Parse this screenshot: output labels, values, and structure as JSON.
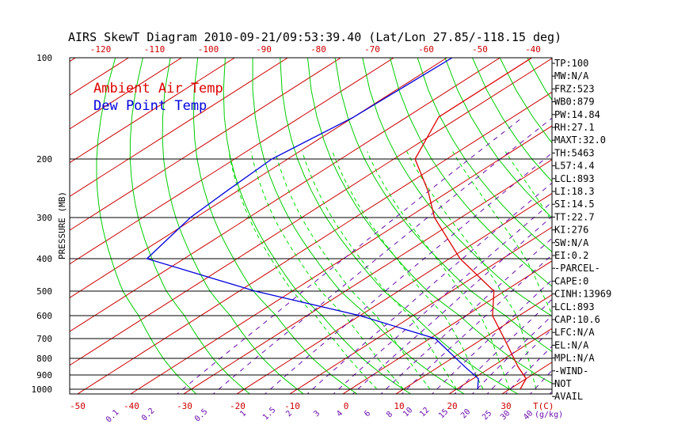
{
  "chart_data": {
    "type": "line",
    "title": "AIRS SkewT Diagram 2010-09-21/09:53:39.40 (Lat/Lon 27.85/-118.15 deg)",
    "ylabel": "PRESSURE (MB)",
    "xlabel_right": "T(C)",
    "mixing_unit": "(g/kg)",
    "top_ticks": [
      "-120",
      "-110",
      "-100",
      "-90",
      "-80",
      "-70",
      "-60",
      "-50",
      "-40"
    ],
    "bottom_ticks": [
      "-50",
      "-40",
      "-30",
      "-20",
      "-10",
      "0",
      "10",
      "20",
      "30"
    ],
    "pressure_ticks": [
      "100",
      "200",
      "300",
      "400",
      "500",
      "600",
      "700",
      "800",
      "900",
      "1000"
    ],
    "pressure_levels": [
      100,
      200,
      300,
      400,
      500,
      600,
      700,
      800,
      900,
      1000
    ],
    "mixing_ratio_labels": [
      "0.1",
      "0.2",
      "0.5",
      "1",
      "1.5",
      "2",
      "3",
      "4",
      "6",
      "8",
      "10",
      "12",
      "15",
      "20",
      "25",
      "30",
      "40"
    ],
    "series": [
      {
        "name": "Ambient Air Temp",
        "color": "#dd0000",
        "points": [
          [
            100,
            -74
          ],
          [
            150,
            -74
          ],
          [
            200,
            -66
          ],
          [
            250,
            -54
          ],
          [
            300,
            -45
          ],
          [
            400,
            -28
          ],
          [
            500,
            -12
          ],
          [
            600,
            -5
          ],
          [
            700,
            4
          ],
          [
            850,
            15
          ],
          [
            925,
            20
          ],
          [
            1000,
            22
          ]
        ]
      },
      {
        "name": "Dew Point Temp",
        "color": "#0000dd",
        "points": [
          [
            100,
            -89
          ],
          [
            150,
            -90
          ],
          [
            200,
            -93
          ],
          [
            250,
            -92
          ],
          [
            300,
            -91
          ],
          [
            400,
            -87
          ],
          [
            500,
            -57
          ],
          [
            600,
            -30
          ],
          [
            700,
            -9
          ],
          [
            850,
            5
          ],
          [
            925,
            11
          ],
          [
            1000,
            14
          ]
        ]
      }
    ],
    "legend": [
      "Ambient Air Temp",
      "Dew Point Temp"
    ]
  },
  "indices": [
    "TP:100",
    "MW:N/A",
    "FRZ:523",
    "WB0:879",
    "PW:14.84",
    "RH:27.1",
    "MAXT:32.0",
    "TH:5463",
    "L57:4.4",
    "LCL:893",
    "LI:18.3",
    "SI:14.5",
    "TT:22.7",
    "KI:276",
    "SW:N/A",
    "EI:0.2",
    "-PARCEL-",
    "CAPE:0",
    "CINH:13969",
    "LCL:893",
    "CAP:10.6",
    "LFC:N/A",
    "EL:N/A",
    "MPL:N/A",
    "-WIND-",
    "NOT",
    "AVAIL"
  ],
  "colors": {
    "temp": "#dd0000",
    "dew": "#0000dd",
    "isotherm": "#cc0000",
    "dry_adiabat": "#00cc00",
    "moist_adiabat": "#00dd00",
    "mixing": "#6a0dad",
    "isobar": "#000000"
  }
}
